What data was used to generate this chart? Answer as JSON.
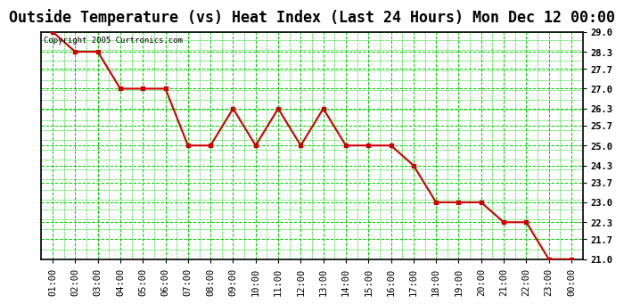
{
  "title": "Outside Temperature (vs) Heat Index (Last 24 Hours) Mon Dec 12 00:00",
  "copyright": "Copyright 2005 Curtronics.com",
  "x_labels": [
    "01:00",
    "02:00",
    "03:00",
    "04:00",
    "05:00",
    "06:00",
    "07:00",
    "08:00",
    "09:00",
    "10:00",
    "11:00",
    "12:00",
    "13:00",
    "14:00",
    "15:00",
    "16:00",
    "17:00",
    "18:00",
    "19:00",
    "20:00",
    "21:00",
    "22:00",
    "23:00",
    "00:00"
  ],
  "y_values": [
    29.0,
    28.3,
    28.3,
    27.0,
    27.0,
    27.0,
    25.0,
    25.0,
    26.3,
    25.0,
    26.3,
    25.0,
    26.3,
    25.0,
    25.0,
    25.0,
    24.3,
    23.0,
    23.0,
    23.0,
    22.3,
    22.3,
    21.0,
    21.0
  ],
  "line_color": "#cc0000",
  "marker_color": "#cc0000",
  "bg_color": "#ffffff",
  "plot_bg_color": "#ffffff",
  "grid_color": "#00cc00",
  "y_tick_labels": [
    "29.0",
    "28.3",
    "27.7",
    "27.0",
    "26.3",
    "25.7",
    "25.0",
    "24.3",
    "23.7",
    "23.0",
    "22.3",
    "21.7",
    "21.0"
  ],
  "y_tick_values": [
    29.0,
    28.3,
    27.7,
    27.0,
    26.3,
    25.7,
    25.0,
    24.3,
    23.7,
    23.0,
    22.3,
    21.7,
    21.0
  ],
  "ylim": [
    21.0,
    29.0
  ],
  "title_fontsize": 12,
  "axis_fontsize": 7.5,
  "copyright_fontsize": 6.5
}
